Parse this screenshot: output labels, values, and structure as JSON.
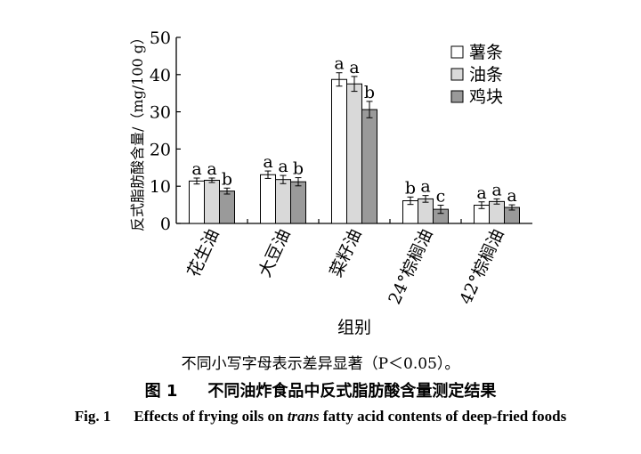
{
  "chart_data": {
    "type": "bar",
    "categories": [
      "花生油",
      "大豆油",
      "菜籽油",
      "24°棕榈油",
      "42°棕榈油"
    ],
    "series": [
      {
        "name": "薯条",
        "color": "#ffffff",
        "values": [
          11.4,
          13.1,
          38.7,
          6.1,
          4.9
        ],
        "errors": [
          0.8,
          1.0,
          1.8,
          1.0,
          0.9
        ],
        "letters": [
          "a",
          "a",
          "a",
          "b",
          "a"
        ]
      },
      {
        "name": "油条",
        "color": "#d9d9d9",
        "values": [
          11.6,
          11.8,
          37.5,
          6.6,
          5.9
        ],
        "errors": [
          0.6,
          1.1,
          2.0,
          0.9,
          0.7
        ],
        "letters": [
          "a",
          "a",
          "a",
          "a",
          "a"
        ]
      },
      {
        "name": "鸡块",
        "color": "#9a9a9a",
        "values": [
          8.7,
          11.2,
          30.6,
          3.8,
          4.3
        ],
        "errors": [
          0.8,
          1.1,
          2.2,
          1.1,
          0.7
        ],
        "letters": [
          "b",
          "b",
          "b",
          "c",
          "a"
        ]
      }
    ],
    "ylabel": "反式脂肪酸含量/（mg/100 g）",
    "xlabel": "组别",
    "ylim": [
      0,
      50
    ],
    "yticks": [
      0,
      10,
      20,
      30,
      40,
      50
    ],
    "grid": false,
    "legend": "top-right"
  },
  "note": "不同小写字母表示差异显著（P＜0.05）。",
  "caption": {
    "cn_num": "图 1",
    "cn_text": "不同油炸食品中反式脂肪酸含量测定结果",
    "en_num": "Fig. 1",
    "en_pre": "Effects of frying oils on ",
    "en_ital": "trans",
    "en_post": " fatty acid contents of deep-fried foods"
  }
}
